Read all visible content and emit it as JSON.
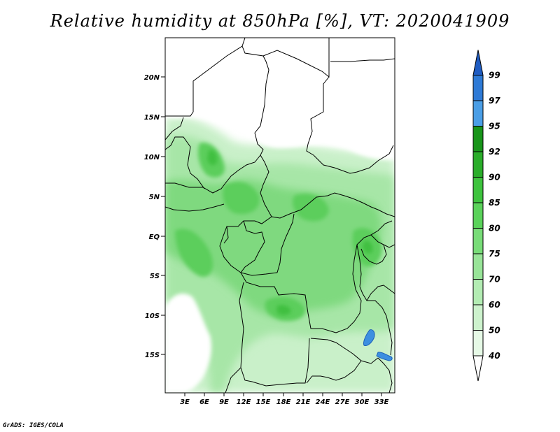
{
  "title": "Relative humidity at 850hPa [%], VT: 2020041909",
  "credit": "GrADS: IGES/COLA",
  "lat_labels": [
    "20N",
    "15N",
    "10N",
    "5N",
    "EQ",
    "5S",
    "10S",
    "15S"
  ],
  "lon_labels": [
    "3E",
    "6E",
    "9E",
    "12E",
    "15E",
    "18E",
    "21E",
    "24E",
    "27E",
    "30E",
    "33E"
  ],
  "colorbar": {
    "levels": [
      "40",
      "50",
      "60",
      "70",
      "75",
      "80",
      "85",
      "90",
      "92",
      "95",
      "97",
      "99"
    ],
    "colors": [
      "#ffffff",
      "#e6f9e6",
      "#cdf2cd",
      "#b3ecb3",
      "#98e498",
      "#78dc78",
      "#5ad25a",
      "#3ec33e",
      "#2aad2a",
      "#18951a",
      "#4a9ee6",
      "#2e7ad6",
      "#1f5cc2"
    ]
  }
}
